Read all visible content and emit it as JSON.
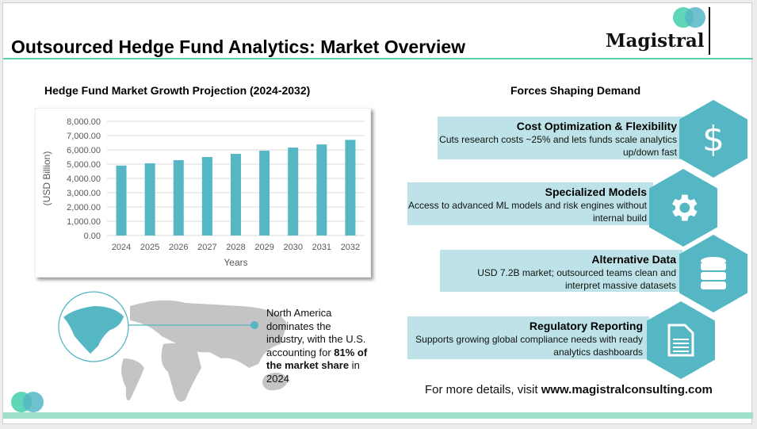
{
  "header": {
    "title": "Outsourced Hedge Fund Analytics: Market Overview",
    "logo": "Magistral"
  },
  "colors": {
    "accent": "#55b6c4",
    "green": "#5ccfb0",
    "box": "#bde3e8",
    "map": "#c4c4c4"
  },
  "chart_data": {
    "type": "bar",
    "title": "Hedge Fund Market Growth Projection (2024-2032)",
    "xlabel": "Years",
    "ylabel": "(USD Billion)",
    "categories": [
      "2024",
      "2025",
      "2026",
      "2027",
      "2028",
      "2029",
      "2030",
      "2031",
      "2032"
    ],
    "values": [
      4900,
      5060,
      5280,
      5500,
      5720,
      5940,
      6160,
      6380,
      6700
    ],
    "ylim": [
      0,
      8000
    ],
    "yticks": [
      "0.00",
      "1,000.00",
      "2,000.00",
      "3,000.00",
      "4,000.00",
      "5,000.00",
      "6,000.00",
      "7,000.00",
      "8,000.00"
    ],
    "grid": true,
    "color": "#55b6c4"
  },
  "map": {
    "text_plain1": "North America dominates the industry, with the U.S. accounting for ",
    "text_bold": "81% of the market share",
    "text_plain2": " in 2024",
    "highlight": "North America"
  },
  "forces": {
    "title": "Forces Shaping Demand",
    "items": [
      {
        "title": "Cost Optimization & Flexibility",
        "desc": "Cuts research costs ~25% and lets funds scale analytics up/down fast",
        "icon": "dollar-icon"
      },
      {
        "title": "Specialized Models",
        "desc": "Access to advanced ML models and risk engines without internal build",
        "icon": "gear-icon"
      },
      {
        "title": "Alternative Data",
        "desc": "USD 7.2B market; outsourced teams clean and interpret massive datasets",
        "icon": "database-icon"
      },
      {
        "title": "Regulatory Reporting",
        "desc": "Supports growing global compliance needs with ready analytics dashboards",
        "icon": "document-icon"
      }
    ]
  },
  "footer": {
    "prefix": "For more details, visit ",
    "url": "www.magistralconsulting.com"
  }
}
